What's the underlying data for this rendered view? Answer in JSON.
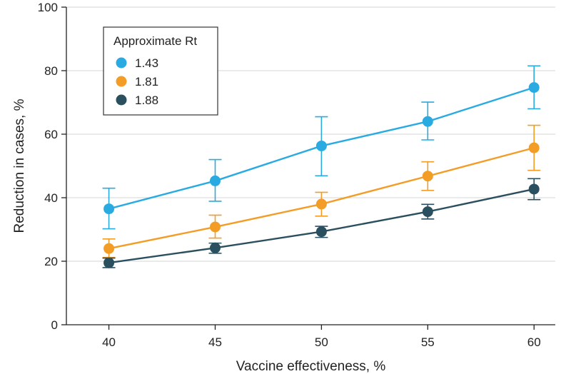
{
  "chart_data": {
    "type": "line",
    "xlabel": "Vaccine effectiveness, %",
    "ylabel": "Reduction in cases, %",
    "x": [
      40,
      45,
      50,
      55,
      60
    ],
    "xlim": [
      38,
      61
    ],
    "ylim": [
      0,
      100
    ],
    "xticks": [
      "40",
      "45",
      "50",
      "55",
      "60"
    ],
    "yticks": [
      "0",
      "20",
      "40",
      "60",
      "80",
      "100"
    ],
    "grid": "horizontal",
    "error_bars": true,
    "legend": {
      "title": "Approximate Rt",
      "placement": "top-left"
    },
    "series": [
      {
        "name": "1.43",
        "color": "#29ABE2",
        "values": [
          36.5,
          45.3,
          56.3,
          64.0,
          74.7
        ],
        "err_low": [
          30.2,
          38.9,
          46.9,
          58.2,
          68.0
        ],
        "err_high": [
          43.0,
          52.0,
          65.5,
          70.1,
          81.5
        ]
      },
      {
        "name": "1.81",
        "color": "#F39C26",
        "values": [
          24.0,
          30.8,
          38.0,
          46.8,
          55.7
        ],
        "err_low": [
          21.2,
          27.3,
          34.2,
          42.3,
          48.6
        ],
        "err_high": [
          27.0,
          34.5,
          41.7,
          51.3,
          62.8
        ]
      },
      {
        "name": "1.88",
        "color": "#2A4F5E",
        "values": [
          19.5,
          24.2,
          29.3,
          35.6,
          42.7
        ],
        "err_low": [
          18.0,
          22.5,
          27.5,
          33.3,
          39.4
        ],
        "err_high": [
          21.0,
          25.7,
          31.0,
          37.9,
          46.0
        ]
      }
    ]
  }
}
